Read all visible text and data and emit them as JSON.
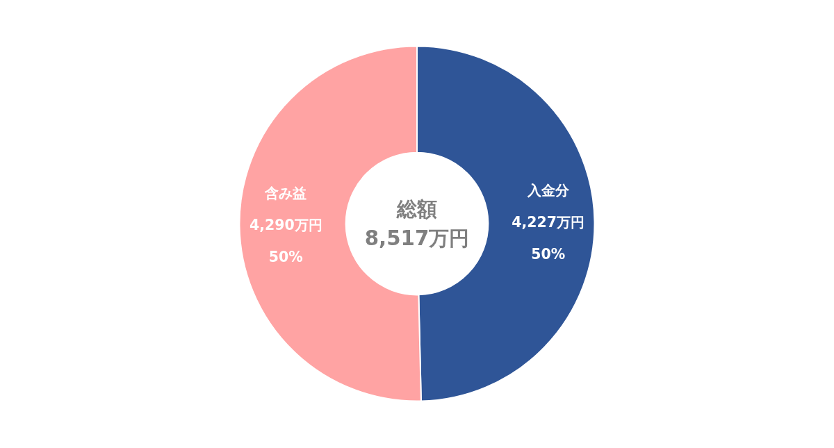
{
  "chart_data": {
    "type": "donut",
    "categories": [
      "入金分",
      "含み益"
    ],
    "values": [
      4227,
      4290
    ],
    "colors": [
      "#2f5597",
      "#ffa3a3"
    ],
    "value_labels": [
      "4,227万円\n50%",
      "4,290万円\n50%"
    ],
    "annotations": [
      "総額",
      "8,517万円"
    ]
  }
}
